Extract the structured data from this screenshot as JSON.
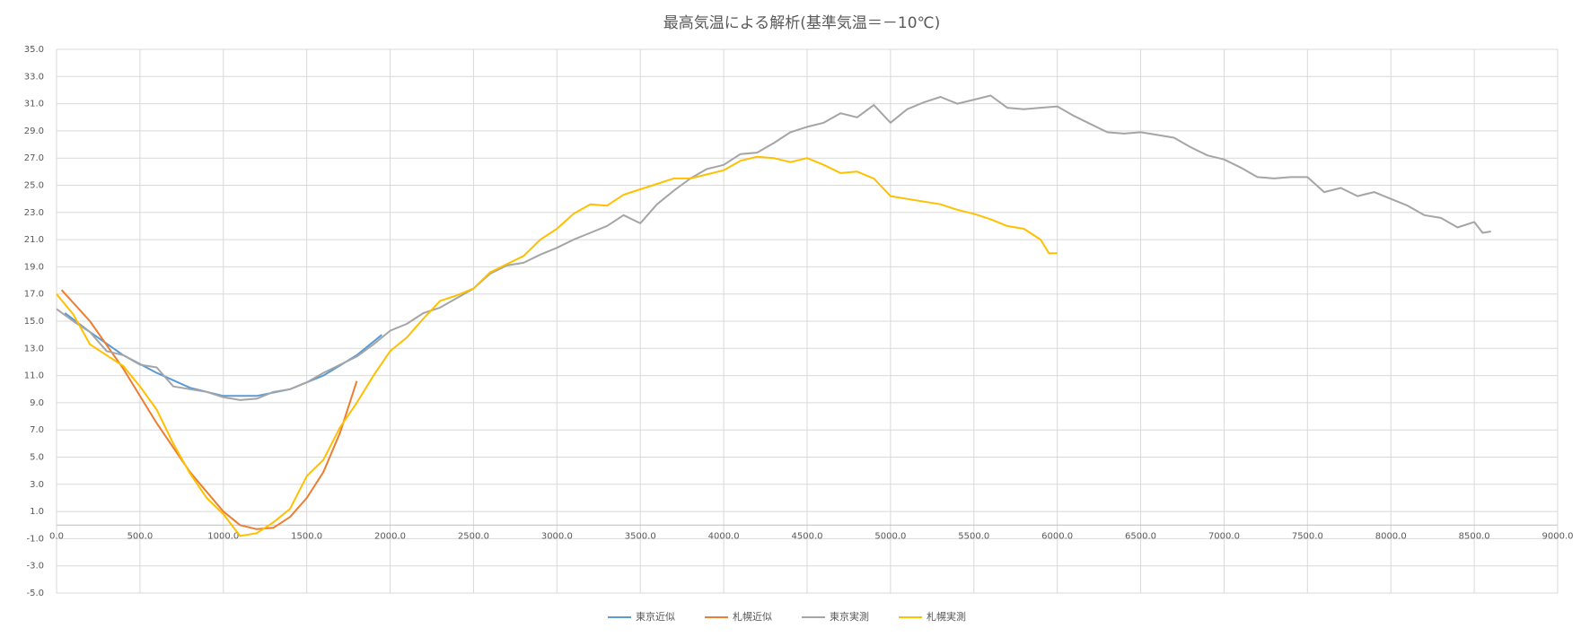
{
  "chart_data": {
    "type": "line",
    "title": "最高気温による解析(基準気温＝－10℃)",
    "xlim": [
      0,
      9000
    ],
    "ylim": [
      -5,
      35
    ],
    "xticks": [
      {
        "value": 0,
        "label": "0.0"
      },
      {
        "value": 500,
        "label": "500.0"
      },
      {
        "value": 1000,
        "label": "1000.0"
      },
      {
        "value": 1500,
        "label": "1500.0"
      },
      {
        "value": 2000,
        "label": "2000.0"
      },
      {
        "value": 2500,
        "label": "2500.0"
      },
      {
        "value": 3000,
        "label": "3000.0"
      },
      {
        "value": 3500,
        "label": "3500.0"
      },
      {
        "value": 4000,
        "label": "4000.0"
      },
      {
        "value": 4500,
        "label": "4500.0"
      },
      {
        "value": 5000,
        "label": "5000.0"
      },
      {
        "value": 5500,
        "label": "5500.0"
      },
      {
        "value": 6000,
        "label": "6000.0"
      },
      {
        "value": 6500,
        "label": "6500.0"
      },
      {
        "value": 7000,
        "label": "7000.0"
      },
      {
        "value": 7500,
        "label": "7500.0"
      },
      {
        "value": 8000,
        "label": "8000.0"
      },
      {
        "value": 8500,
        "label": "8500.0"
      },
      {
        "value": 9000,
        "label": "9000.0"
      }
    ],
    "yticks": [
      {
        "value": -5,
        "label": "-5.0"
      },
      {
        "value": -3,
        "label": "-3.0"
      },
      {
        "value": -1,
        "label": "-1.0"
      },
      {
        "value": 1,
        "label": "1.0"
      },
      {
        "value": 3,
        "label": "3.0"
      },
      {
        "value": 5,
        "label": "5.0"
      },
      {
        "value": 7,
        "label": "7.0"
      },
      {
        "value": 9,
        "label": "9.0"
      },
      {
        "value": 11,
        "label": "11.0"
      },
      {
        "value": 13,
        "label": "13.0"
      },
      {
        "value": 15,
        "label": "15.0"
      },
      {
        "value": 17,
        "label": "17.0"
      },
      {
        "value": 19,
        "label": "19.0"
      },
      {
        "value": 21,
        "label": "21.0"
      },
      {
        "value": 23,
        "label": "23.0"
      },
      {
        "value": 25,
        "label": "25.0"
      },
      {
        "value": 27,
        "label": "27.0"
      },
      {
        "value": 29,
        "label": "29.0"
      },
      {
        "value": 31,
        "label": "31.0"
      },
      {
        "value": 33,
        "label": "33.0"
      },
      {
        "value": 35,
        "label": "35.0"
      }
    ],
    "grid": true,
    "legend": "bottom",
    "series": [
      {
        "name": "東京近似",
        "color": "#5b9bd5",
        "x": [
          50,
          200,
          400,
          600,
          800,
          1000,
          1200,
          1400,
          1600,
          1800,
          1950
        ],
        "values": [
          15.6,
          14.2,
          12.5,
          11.2,
          10.1,
          9.5,
          9.5,
          10.0,
          11.0,
          12.5,
          14.0
        ]
      },
      {
        "name": "札幌近似",
        "color": "#ed7d31",
        "x": [
          30,
          200,
          400,
          600,
          800,
          1000,
          1100,
          1200,
          1300,
          1400,
          1500,
          1600,
          1700,
          1800
        ],
        "values": [
          17.3,
          15.0,
          11.5,
          7.5,
          3.9,
          1.0,
          0.0,
          -0.3,
          -0.2,
          0.6,
          2.0,
          3.9,
          6.8,
          10.6
        ]
      },
      {
        "name": "東京実測",
        "color": "#a5a5a5",
        "x": [
          0,
          100,
          200,
          300,
          400,
          500,
          600,
          700,
          800,
          900,
          1000,
          1100,
          1200,
          1300,
          1400,
          1500,
          1600,
          1700,
          1800,
          1900,
          2000,
          2100,
          2200,
          2300,
          2400,
          2500,
          2600,
          2700,
          2800,
          2900,
          3000,
          3100,
          3200,
          3300,
          3400,
          3500,
          3600,
          3700,
          3800,
          3900,
          4000,
          4100,
          4200,
          4300,
          4400,
          4500,
          4600,
          4700,
          4800,
          4900,
          5000,
          5100,
          5200,
          5300,
          5400,
          5500,
          5600,
          5700,
          5800,
          5900,
          6000,
          6100,
          6200,
          6300,
          6400,
          6500,
          6600,
          6700,
          6800,
          6900,
          7000,
          7100,
          7200,
          7300,
          7400,
          7500,
          7600,
          7700,
          7800,
          7900,
          8000,
          8100,
          8200,
          8300,
          8400,
          8500,
          8550,
          8600
        ],
        "values": [
          15.9,
          15.0,
          14.2,
          12.8,
          12.5,
          11.8,
          11.6,
          10.2,
          10.0,
          9.8,
          9.4,
          9.2,
          9.3,
          9.8,
          10.0,
          10.5,
          11.2,
          11.8,
          12.4,
          13.3,
          14.3,
          14.8,
          15.6,
          16.0,
          16.7,
          17.4,
          18.5,
          19.1,
          19.3,
          19.9,
          20.4,
          21.0,
          21.5,
          22.0,
          22.8,
          22.2,
          23.6,
          24.6,
          25.5,
          26.2,
          26.5,
          27.3,
          27.4,
          28.1,
          28.9,
          29.3,
          29.6,
          30.3,
          30.0,
          30.9,
          29.6,
          30.6,
          31.1,
          31.5,
          31.0,
          31.3,
          31.6,
          30.7,
          30.6,
          30.7,
          30.8,
          30.1,
          29.5,
          28.9,
          28.8,
          28.9,
          28.7,
          28.5,
          27.8,
          27.2,
          26.9,
          26.3,
          25.6,
          25.5,
          25.6,
          25.6,
          24.5,
          24.8,
          24.2,
          24.5,
          24.0,
          23.5,
          22.8,
          22.6,
          21.9,
          22.3,
          21.5,
          21.6
        ]
      },
      {
        "name": "札幌実測",
        "color": "#ffc000",
        "x": [
          0,
          100,
          200,
          300,
          400,
          500,
          600,
          700,
          800,
          900,
          1000,
          1100,
          1200,
          1300,
          1400,
          1500,
          1600,
          1700,
          1800,
          1900,
          2000,
          2100,
          2200,
          2300,
          2400,
          2500,
          2600,
          2700,
          2800,
          2900,
          3000,
          3100,
          3200,
          3300,
          3400,
          3500,
          3600,
          3700,
          3800,
          3900,
          4000,
          4100,
          4200,
          4300,
          4400,
          4500,
          4600,
          4700,
          4800,
          4900,
          5000,
          5100,
          5200,
          5300,
          5400,
          5500,
          5600,
          5700,
          5800,
          5900,
          5950,
          6000
        ],
        "values": [
          17.0,
          15.5,
          13.3,
          12.5,
          11.7,
          10.2,
          8.5,
          6.0,
          3.8,
          2.0,
          0.8,
          -0.8,
          -0.6,
          0.2,
          1.2,
          3.6,
          4.8,
          7.2,
          9.0,
          11.0,
          12.8,
          13.8,
          15.2,
          16.5,
          16.9,
          17.4,
          18.6,
          19.2,
          19.8,
          21.0,
          21.8,
          22.9,
          23.6,
          23.5,
          24.3,
          24.7,
          25.1,
          25.5,
          25.5,
          25.8,
          26.1,
          26.8,
          27.1,
          27.0,
          26.7,
          27.0,
          26.5,
          25.9,
          26.0,
          25.5,
          24.2,
          24.0,
          23.8,
          23.6,
          23.2,
          22.9,
          22.5,
          22.0,
          21.8,
          21.0,
          20.0,
          20.0
        ]
      }
    ]
  }
}
